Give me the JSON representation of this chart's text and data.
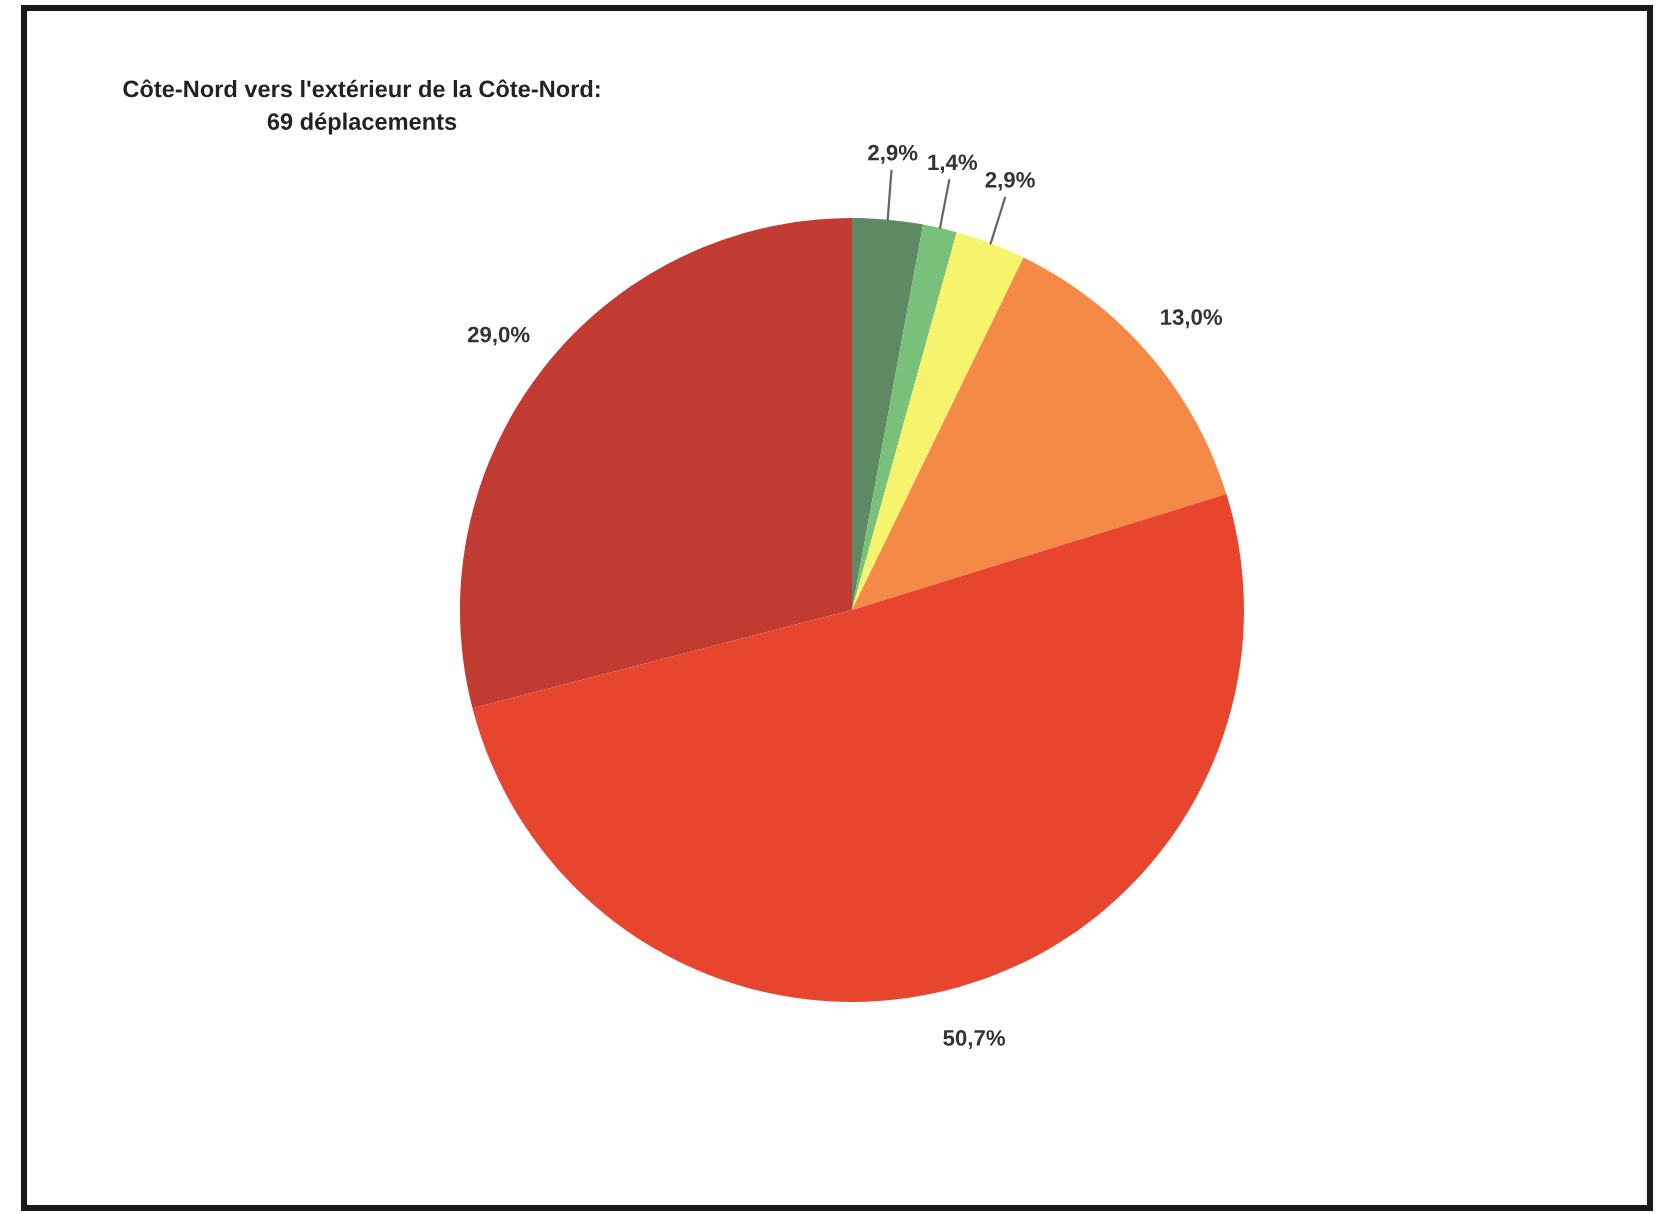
{
  "chart_data": {
    "type": "pie",
    "title": "Côte-Nord vers l'extérieur de la Côte-Nord:\n69 déplacements",
    "categories": [
      null,
      null,
      null,
      null,
      null,
      null
    ],
    "values": [
      2.9,
      1.4,
      2.9,
      13.0,
      50.7,
      29.0
    ],
    "colors": [
      "#5d8a62",
      "#79c07a",
      "#f6f46c",
      "#f58a47",
      "#e8452f",
      "#c23b33"
    ],
    "value_labels": [
      "2,9%",
      "1,4%",
      "2,9%",
      "13,0%",
      "50,7%",
      "29,0%"
    ]
  }
}
